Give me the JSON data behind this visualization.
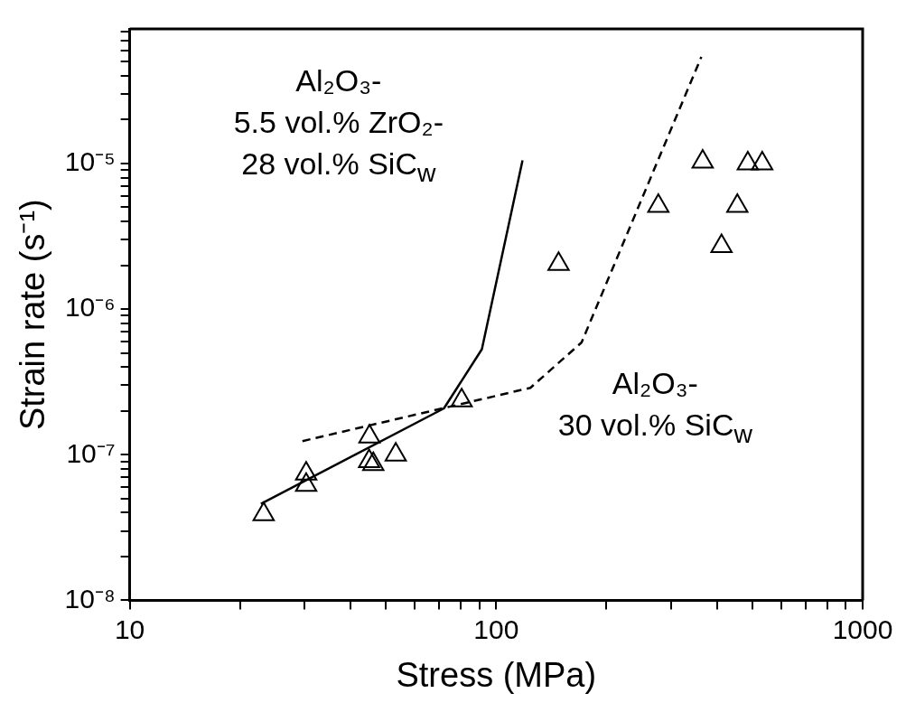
{
  "chart_data": {
    "type": "scatter",
    "xlabel": "Stress (MPa)",
    "ylabel": "Strain rate (s⁻¹)",
    "log": "xy",
    "grid": false,
    "legend": false,
    "xlim": [
      10,
      1000
    ],
    "ylim": [
      1e-08,
      8.4e-05
    ],
    "xticks": [
      10,
      {
        "value": 20,
        "label": null
      },
      {
        "value": 30,
        "label": null
      },
      {
        "value": 40,
        "label": null
      },
      {
        "value": 50,
        "label": null
      },
      {
        "value": 60,
        "label": null
      },
      {
        "value": 70,
        "label": null
      },
      {
        "value": 80,
        "label": null
      },
      {
        "value": 90,
        "label": null
      },
      100,
      {
        "value": 200,
        "label": null
      },
      {
        "value": 300,
        "label": null
      },
      {
        "value": 400,
        "label": null
      },
      {
        "value": 500,
        "label": null
      },
      {
        "value": 600,
        "label": null
      },
      {
        "value": 700,
        "label": null
      },
      {
        "value": 800,
        "label": null
      },
      {
        "value": 900,
        "label": null
      },
      1000
    ],
    "yticks": [
      {
        "value": 1e-08,
        "label": "10⁻⁸"
      },
      {
        "value": 2e-08,
        "label": null
      },
      {
        "value": 3e-08,
        "label": null
      },
      {
        "value": 4e-08,
        "label": null
      },
      {
        "value": 5e-08,
        "label": null
      },
      {
        "value": 6e-08,
        "label": null
      },
      {
        "value": 7e-08,
        "label": null
      },
      {
        "value": 8e-08,
        "label": null
      },
      {
        "value": 9e-08,
        "label": null
      },
      {
        "value": 1e-07,
        "label": "10⁻⁷"
      },
      {
        "value": 2e-07,
        "label": null
      },
      {
        "value": 3e-07,
        "label": null
      },
      {
        "value": 4e-07,
        "label": null
      },
      {
        "value": 5e-07,
        "label": null
      },
      {
        "value": 6e-07,
        "label": null
      },
      {
        "value": 7e-07,
        "label": null
      },
      {
        "value": 8e-07,
        "label": null
      },
      {
        "value": 9e-07,
        "label": null
      },
      {
        "value": 1e-06,
        "label": "10⁻⁶"
      },
      {
        "value": 2e-06,
        "label": null
      },
      {
        "value": 3e-06,
        "label": null
      },
      {
        "value": 4e-06,
        "label": null
      },
      {
        "value": 5e-06,
        "label": null
      },
      {
        "value": 6e-06,
        "label": null
      },
      {
        "value": 7e-06,
        "label": null
      },
      {
        "value": 8e-06,
        "label": null
      },
      {
        "value": 9e-06,
        "label": null
      },
      {
        "value": 1e-05,
        "label": "10⁻⁵"
      },
      {
        "value": 2e-05,
        "label": null
      },
      {
        "value": 3e-05,
        "label": null
      },
      {
        "value": 4e-05,
        "label": null
      },
      {
        "value": 5e-05,
        "label": null
      },
      {
        "value": 6e-05,
        "label": null
      },
      {
        "value": 7e-05,
        "label": null
      },
      {
        "value": 8e-05,
        "label": null
      }
    ],
    "series": [
      {
        "color": "#000000",
        "marker": "triangle",
        "x": [
          23.2,
          30.3,
          30.3,
          45.1,
          45,
          46.2,
          53.2,
          80.5,
          148,
          277,
          366,
          486,
          532,
          455,
          412
        ],
        "values": [
          3.9e-08,
          7.4e-08,
          6.2e-08,
          1.33e-07,
          9e-08,
          8.6e-08,
          1e-07,
          2.36e-07,
          2.04e-06,
          5.1e-06,
          1.03e-05,
          1e-05,
          1e-05,
          5.1e-06,
          2.7e-06
        ]
      },
      {
        "type": "line",
        "color": "#000000",
        "marker": "none",
        "line_style": "solid",
        "x": [
          22.8,
          72,
          91.4,
          118
        ],
        "values": [
          4.6e-08,
          2.08e-07,
          5.3e-07,
          1.05e-05
        ]
      },
      {
        "type": "line",
        "color": "#000000",
        "marker": "none",
        "line_style": "dashed",
        "x": [
          29.6,
          124,
          171,
          363
        ],
        "values": [
          1.24e-07,
          2.88e-07,
          5.9e-07,
          5.4e-05
        ]
      }
    ],
    "annotations": [
      "Al₂O₃-\n5.5 vol.% ZrO₂-\n28 vol.% SiC$_{w}$",
      "Al₂O₃-\n30 vol.% SiC$_{w}$"
    ]
  }
}
